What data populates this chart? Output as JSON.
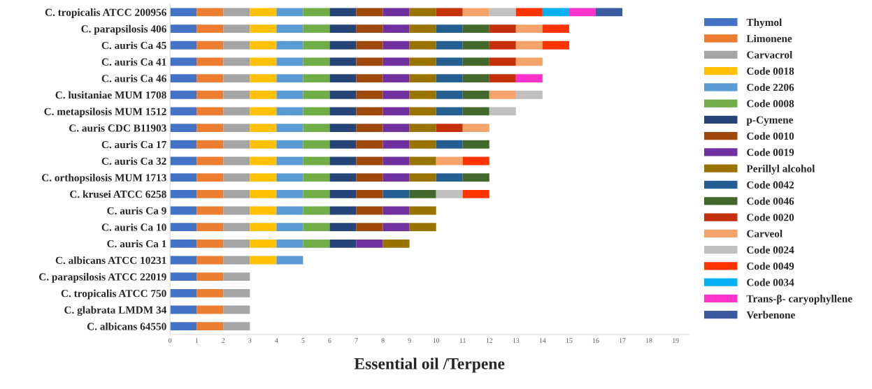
{
  "chart_data": {
    "type": "bar",
    "orientation": "horizontal",
    "stacked": true,
    "xlabel": "Essential oil /Terpene",
    "categories": [
      "C. tropicalis ATCC 200956",
      "C. parapsilosis 406",
      "C. auris Ca 45",
      "C. auris Ca 41",
      "C. auris Ca 46",
      "C. lusitaniae MUM 1708",
      "C. metapsilosis MUM 1512",
      "C. auris CDC B11903",
      "C. auris Ca 17",
      "C. auris Ca 32",
      "C. orthopsilosis MUM 1713",
      "C. krusei ATCC 6258",
      "C. auris Ca 9",
      "C. auris Ca 10",
      "C. auris Ca 1",
      "C. albicans ATCC 10231",
      "C. parapsilosis ATCC 22019",
      "C. tropicalis ATCC 750",
      "C. glabrata LMDM 34",
      "C. albicans 64550"
    ],
    "xlim": [
      0,
      19.5
    ],
    "xticks": [
      0,
      1,
      2,
      3,
      4,
      5,
      6,
      7,
      8,
      9,
      10,
      11,
      12,
      13,
      14,
      15,
      16,
      17,
      18,
      19
    ],
    "grid": false,
    "legend": "right",
    "series": [
      {
        "name": "Thymol",
        "color": "#4472c4",
        "values": [
          1,
          1,
          1,
          1,
          1,
          1,
          1,
          1,
          1,
          1,
          1,
          1,
          1,
          1,
          1,
          1,
          1,
          1,
          1,
          1
        ]
      },
      {
        "name": "Limonene",
        "color": "#ed7d31",
        "values": [
          1,
          1,
          1,
          1,
          1,
          1,
          1,
          1,
          1,
          1,
          1,
          1,
          1,
          1,
          1,
          1,
          1,
          1,
          1,
          1
        ]
      },
      {
        "name": "Carvacrol",
        "color": "#a5a5a5",
        "values": [
          1,
          1,
          1,
          1,
          1,
          1,
          1,
          1,
          1,
          1,
          1,
          1,
          1,
          1,
          1,
          1,
          1,
          1,
          1,
          1
        ]
      },
      {
        "name": "Code 0018",
        "color": "#ffc000",
        "values": [
          1,
          1,
          1,
          1,
          1,
          1,
          1,
          1,
          1,
          1,
          1,
          1,
          1,
          1,
          1,
          1,
          null,
          null,
          null,
          null
        ]
      },
      {
        "name": "Code 2206",
        "color": "#5b9bd5",
        "values": [
          1,
          1,
          1,
          1,
          1,
          1,
          1,
          1,
          1,
          1,
          1,
          1,
          1,
          1,
          1,
          1,
          null,
          null,
          null,
          null
        ]
      },
      {
        "name": "Code 0008",
        "color": "#70ad47",
        "values": [
          1,
          1,
          1,
          1,
          1,
          1,
          1,
          1,
          1,
          1,
          1,
          1,
          1,
          1,
          1,
          null,
          null,
          null,
          null,
          null
        ]
      },
      {
        "name": "p-Cymene",
        "color": "#264478",
        "values": [
          1,
          1,
          1,
          1,
          1,
          1,
          1,
          1,
          1,
          1,
          1,
          1,
          1,
          1,
          1,
          null,
          null,
          null,
          null,
          null
        ]
      },
      {
        "name": "Code 0010",
        "color": "#9e480e",
        "values": [
          1,
          1,
          1,
          1,
          1,
          1,
          1,
          1,
          1,
          1,
          1,
          1,
          1,
          1,
          null,
          null,
          null,
          null,
          null,
          null
        ]
      },
      {
        "name": "Code 0019",
        "color": "#7030a0",
        "values": [
          1,
          1,
          1,
          1,
          1,
          1,
          1,
          1,
          1,
          1,
          1,
          null,
          1,
          1,
          1,
          null,
          null,
          null,
          null,
          null
        ]
      },
      {
        "name": "Perillyl alcohol",
        "color": "#997300",
        "values": [
          1,
          1,
          1,
          1,
          1,
          1,
          1,
          1,
          1,
          1,
          1,
          null,
          1,
          1,
          1,
          null,
          null,
          null,
          null,
          null
        ]
      },
      {
        "name": "Code 0042",
        "color": "#255e91",
        "values": [
          null,
          1,
          1,
          1,
          1,
          1,
          1,
          null,
          1,
          null,
          1,
          1,
          null,
          null,
          null,
          null,
          null,
          null,
          null,
          null
        ]
      },
      {
        "name": "Code 0046",
        "color": "#43682b",
        "values": [
          null,
          1,
          1,
          1,
          1,
          1,
          1,
          null,
          1,
          null,
          1,
          1,
          null,
          null,
          null,
          null,
          null,
          null,
          null,
          null
        ]
      },
      {
        "name": "Code 0020",
        "color": "#c3300a",
        "values": [
          1,
          1,
          1,
          1,
          1,
          null,
          null,
          1,
          null,
          null,
          null,
          null,
          null,
          null,
          null,
          null,
          null,
          null,
          null,
          null
        ]
      },
      {
        "name": "Carveol",
        "color": "#f4a36b",
        "values": [
          1,
          1,
          1,
          1,
          null,
          1,
          null,
          1,
          null,
          1,
          null,
          null,
          null,
          null,
          null,
          null,
          null,
          null,
          null,
          null
        ]
      },
      {
        "name": "Code 0024",
        "color": "#c0c0c0",
        "values": [
          1,
          null,
          null,
          null,
          null,
          1,
          1,
          null,
          null,
          null,
          null,
          1,
          null,
          null,
          null,
          null,
          null,
          null,
          null,
          null
        ]
      },
      {
        "name": "Code 0049",
        "color": "#ff3300",
        "values": [
          1,
          1,
          1,
          null,
          null,
          null,
          null,
          null,
          null,
          1,
          null,
          1,
          null,
          null,
          null,
          null,
          null,
          null,
          null,
          null
        ]
      },
      {
        "name": "Code 0034",
        "color": "#00b0f0",
        "values": [
          1,
          null,
          null,
          null,
          null,
          null,
          null,
          null,
          null,
          null,
          null,
          null,
          null,
          null,
          null,
          null,
          null,
          null,
          null,
          null
        ]
      },
      {
        "name": "Trans-β- caryophyllene",
        "color": "#ff33cc",
        "values": [
          1,
          null,
          null,
          null,
          1,
          null,
          null,
          null,
          null,
          null,
          null,
          null,
          null,
          null,
          null,
          null,
          null,
          null,
          null,
          null
        ]
      },
      {
        "name": "Verbenone",
        "color": "#3a5ba0",
        "values": [
          1,
          null,
          null,
          null,
          null,
          null,
          null,
          null,
          null,
          null,
          null,
          null,
          null,
          null,
          null,
          null,
          null,
          null,
          null,
          null
        ]
      }
    ]
  }
}
